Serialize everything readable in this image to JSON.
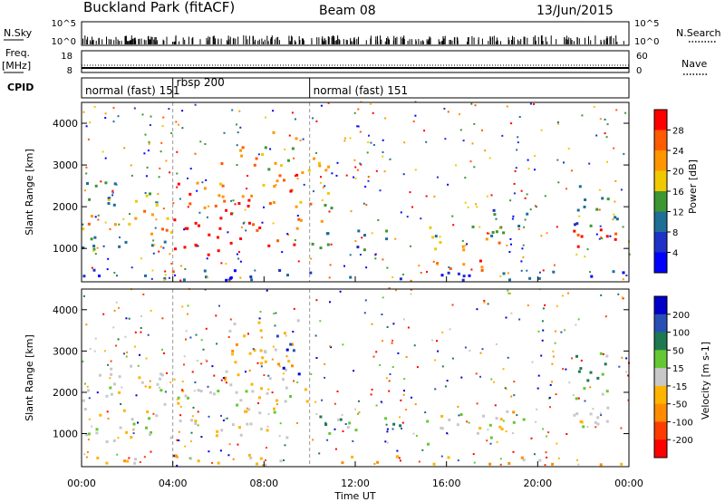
{
  "header": {
    "station": "Buckland Park (fitACF)",
    "beam": "Beam 08",
    "date": "13/Jun/2015"
  },
  "strip_panels": {
    "nsky_label": "N.Sky",
    "nsky_ticks": [
      "10^5",
      "10^0"
    ],
    "nsearch_label": "N.Search",
    "nsearch_ticks": [
      "10^5",
      "10^0"
    ],
    "freq_label": "Freq.",
    "freq_unit": "[MHz]",
    "freq_ticks": [
      "18",
      "8"
    ],
    "nave_label": "Nave",
    "nave_ticks": [
      "60",
      "0"
    ],
    "cpid_label": "CPID",
    "cpid_segments": [
      {
        "label": "normal (fast) 151",
        "start": 0,
        "end": 4
      },
      {
        "label": "rbsp 200",
        "start": 4,
        "end": 10
      },
      {
        "label": "normal (fast) 151",
        "start": 10,
        "end": 24
      }
    ]
  },
  "chart_data": [
    {
      "type": "heatmap",
      "name": "power",
      "ylabel": "Slant Range [km]",
      "ylim": [
        200,
        4500
      ],
      "yticks": [
        1000,
        2000,
        3000,
        4000
      ],
      "xlim": [
        0,
        24
      ],
      "colorbar": {
        "label": "Power [dB]",
        "ticks": [
          "28",
          "24",
          "20",
          "16",
          "12",
          "8",
          "4"
        ],
        "colors": [
          "#ff0000",
          "#ff5a00",
          "#ff9600",
          "#f0c800",
          "#3c9632",
          "#1e6e96",
          "#1e32c8",
          "#0000ff"
        ]
      },
      "regions": [
        {
          "t0": 0.0,
          "t1": 4.0,
          "r0": 900,
          "r1": 1300,
          "level": 5
        },
        {
          "t0": 0.0,
          "t1": 4.0,
          "r0": 1300,
          "r1": 1900,
          "level": 2
        },
        {
          "t0": 0.0,
          "t1": 2.0,
          "r0": 1900,
          "r1": 2700,
          "level": 4
        },
        {
          "t0": 2.0,
          "t1": 4.0,
          "r0": 1900,
          "r1": 2300,
          "level": 3
        },
        {
          "t0": 3.5,
          "t1": 4.0,
          "r0": 400,
          "r1": 700,
          "level": 0
        },
        {
          "t0": 4.0,
          "t1": 6.0,
          "r0": 700,
          "r1": 1900,
          "level": 0
        },
        {
          "t0": 4.0,
          "t1": 6.0,
          "r0": 1900,
          "r1": 2600,
          "level": 1
        },
        {
          "t0": 6.0,
          "t1": 8.0,
          "r0": 900,
          "r1": 2200,
          "level": 0
        },
        {
          "t0": 6.0,
          "t1": 8.0,
          "r0": 2200,
          "r1": 3400,
          "level": 2
        },
        {
          "t0": 8.0,
          "t1": 9.5,
          "r0": 1000,
          "r1": 2800,
          "level": 1
        },
        {
          "t0": 8.0,
          "t1": 9.5,
          "r0": 2800,
          "r1": 3800,
          "level": 3
        },
        {
          "t0": 9.5,
          "t1": 10.0,
          "r0": 1200,
          "r1": 3000,
          "level": 2
        },
        {
          "t0": 10.0,
          "t1": 11.0,
          "r0": 1600,
          "r1": 3300,
          "level": 3
        },
        {
          "t0": 10.0,
          "t1": 14.0,
          "r0": 900,
          "r1": 1400,
          "level": 5
        },
        {
          "t0": 15.0,
          "t1": 19.5,
          "r0": 1200,
          "r1": 1500,
          "level": 4
        },
        {
          "t0": 15.0,
          "t1": 18.5,
          "r0": 900,
          "r1": 1200,
          "level": 2
        },
        {
          "t0": 15.5,
          "t1": 18.0,
          "r0": 300,
          "r1": 700,
          "level": 1
        },
        {
          "t0": 18.0,
          "t1": 19.5,
          "r0": 1400,
          "r1": 2000,
          "level": 5
        },
        {
          "t0": 21.5,
          "t1": 23.5,
          "r0": 800,
          "r1": 1500,
          "level": 0
        },
        {
          "t0": 21.5,
          "t1": 23.5,
          "r0": 1500,
          "r1": 2600,
          "level": 5
        },
        {
          "t0": 0.0,
          "t1": 24.0,
          "r0": 200,
          "r1": 450,
          "level": 6
        }
      ]
    },
    {
      "type": "heatmap",
      "name": "velocity",
      "ylabel": "Slant Range [km]",
      "ylim": [
        200,
        4500
      ],
      "yticks": [
        1000,
        2000,
        3000,
        4000
      ],
      "xlim": [
        0,
        24
      ],
      "xticks": [
        "00:00",
        "04:00",
        "08:00",
        "12:00",
        "16:00",
        "20:00",
        "00:00"
      ],
      "xlabel": "Time UT",
      "colorbar": {
        "label": "Velocity [m s-1]",
        "ticks": [
          "200",
          "100",
          "50",
          "15",
          "-15",
          "-50",
          "-100",
          "-200"
        ],
        "colors": [
          "#0000c8",
          "#2850b4",
          "#1e7850",
          "#64c832",
          "#c8c8c8",
          "#ffb400",
          "#ff8c00",
          "#ff3c00",
          "#ff0000"
        ]
      },
      "regions": [
        {
          "t0": 0.0,
          "t1": 4.0,
          "r0": 700,
          "r1": 2600,
          "level": 4
        },
        {
          "t0": 4.0,
          "t1": 10.0,
          "r0": 800,
          "r1": 2200,
          "level": 4
        },
        {
          "t0": 6.0,
          "t1": 9.5,
          "r0": 2200,
          "r1": 3800,
          "level": 5
        },
        {
          "t0": 8.5,
          "t1": 9.5,
          "r0": 2400,
          "r1": 3400,
          "level": 0
        },
        {
          "t0": 10.0,
          "t1": 14.0,
          "r0": 900,
          "r1": 1400,
          "level": 3
        },
        {
          "t0": 15.0,
          "t1": 19.5,
          "r0": 1200,
          "r1": 1500,
          "level": 4
        },
        {
          "t0": 15.0,
          "t1": 18.5,
          "r0": 700,
          "r1": 1200,
          "level": 4
        },
        {
          "t0": 17.5,
          "t1": 19.5,
          "r0": 1200,
          "r1": 1500,
          "level": 5
        },
        {
          "t0": 21.5,
          "t1": 23.5,
          "r0": 1400,
          "r1": 3000,
          "level": 3
        },
        {
          "t0": 21.5,
          "t1": 23.5,
          "r0": 800,
          "r1": 1400,
          "level": 4
        },
        {
          "t0": 0.0,
          "t1": 24.0,
          "r0": 200,
          "r1": 450,
          "level": 5
        }
      ]
    }
  ]
}
